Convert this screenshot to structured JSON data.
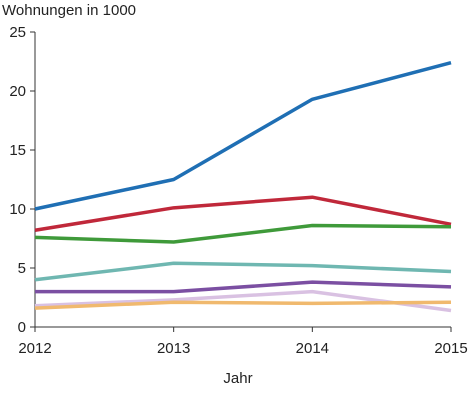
{
  "chart_data": {
    "type": "line",
    "title": "",
    "ylabel": "Wohnungen in 1000",
    "xlabel": "Jahr",
    "x": [
      2012,
      2013,
      2014,
      2015
    ],
    "x_tick_labels": [
      "2012",
      "2013",
      "2014",
      "2015"
    ],
    "y_tick_labels": [
      "0",
      "5",
      "10",
      "15",
      "20",
      "25"
    ],
    "xlim": [
      2012,
      2015
    ],
    "ylim": [
      0,
      25
    ],
    "y_ticks": [
      0,
      5,
      10,
      15,
      20,
      25
    ],
    "grid": false,
    "legend": "none",
    "series": [
      {
        "color": "#1f6fb4",
        "values": [
          10.0,
          12.5,
          19.3,
          22.4
        ]
      },
      {
        "color": "#c0283a",
        "values": [
          8.2,
          10.1,
          11.0,
          8.7
        ]
      },
      {
        "color": "#3f9a3a",
        "values": [
          7.6,
          7.2,
          8.6,
          8.5
        ]
      },
      {
        "color": "#6fb7b1",
        "values": [
          4.0,
          5.4,
          5.2,
          4.7
        ]
      },
      {
        "color": "#7b4fa2",
        "values": [
          3.0,
          3.0,
          3.8,
          3.4
        ]
      },
      {
        "color": "#d9c1e2",
        "values": [
          1.8,
          2.3,
          3.0,
          1.4
        ]
      },
      {
        "color": "#f0b96e",
        "values": [
          1.6,
          2.1,
          2.0,
          2.1
        ]
      }
    ]
  }
}
